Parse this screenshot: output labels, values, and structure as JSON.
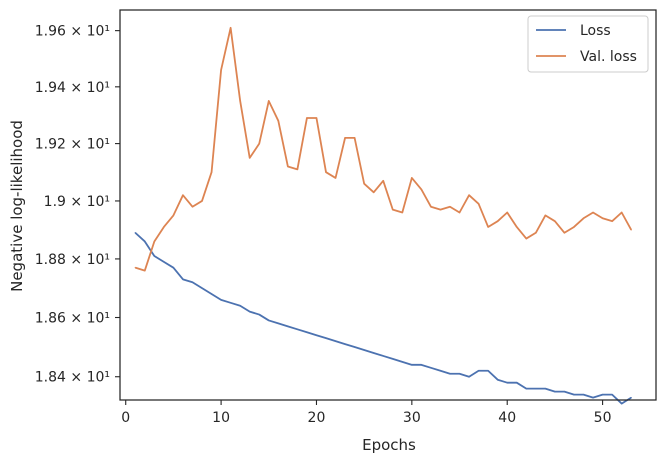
{
  "chart_data": {
    "type": "line",
    "title": "",
    "xlabel": "Epochs",
    "ylabel": "Negative log-likelihood",
    "xlim": [
      -0.6,
      55.6
    ],
    "ylim": [
      18.322,
      19.674
    ],
    "yscale": "log",
    "grid": false,
    "legend_position": "top-right",
    "x_ticks": [
      0,
      10,
      20,
      30,
      40,
      50
    ],
    "y_ticks": [
      {
        "value": 18.4,
        "label": "1.84 × 10¹"
      },
      {
        "value": 18.6,
        "label": "1.86 × 10¹"
      },
      {
        "value": 18.8,
        "label": "1.88 × 10¹"
      },
      {
        "value": 19.0,
        "label": "1.9 × 10¹"
      },
      {
        "value": 19.2,
        "label": "1.92 × 10¹"
      },
      {
        "value": 19.4,
        "label": "1.94 × 10¹"
      },
      {
        "value": 19.6,
        "label": "1.96 × 10¹"
      }
    ],
    "x": [
      1,
      2,
      3,
      4,
      5,
      6,
      7,
      8,
      9,
      10,
      11,
      12,
      13,
      14,
      15,
      16,
      17,
      18,
      19,
      20,
      21,
      22,
      23,
      24,
      25,
      26,
      27,
      28,
      29,
      30,
      31,
      32,
      33,
      34,
      35,
      36,
      37,
      38,
      39,
      40,
      41,
      42,
      43,
      44,
      45,
      46,
      47,
      48,
      49,
      50,
      51,
      52,
      53
    ],
    "series": [
      {
        "name": "Loss",
        "color": "#4c72b0",
        "values": [
          18.89,
          18.86,
          18.81,
          18.79,
          18.77,
          18.73,
          18.72,
          18.7,
          18.68,
          18.66,
          18.65,
          18.64,
          18.62,
          18.61,
          18.59,
          18.58,
          18.57,
          18.56,
          18.55,
          18.54,
          18.53,
          18.52,
          18.51,
          18.5,
          18.49,
          18.48,
          18.47,
          18.46,
          18.45,
          18.44,
          18.44,
          18.43,
          18.42,
          18.41,
          18.41,
          18.4,
          18.42,
          18.42,
          18.39,
          18.38,
          18.38,
          18.36,
          18.36,
          18.36,
          18.35,
          18.35,
          18.34,
          18.34,
          18.33,
          18.34,
          18.34,
          18.31,
          18.33
        ]
      },
      {
        "name": "Val. loss",
        "color": "#dd8452",
        "values": [
          18.77,
          18.76,
          18.86,
          18.91,
          18.95,
          19.02,
          18.98,
          19.0,
          19.1,
          19.46,
          19.61,
          19.35,
          19.15,
          19.2,
          19.35,
          19.28,
          19.12,
          19.11,
          19.29,
          19.29,
          19.1,
          19.08,
          19.22,
          19.22,
          19.06,
          19.03,
          19.07,
          18.97,
          18.96,
          19.08,
          19.04,
          18.98,
          18.97,
          18.98,
          18.96,
          19.02,
          18.99,
          18.91,
          18.93,
          18.96,
          18.91,
          18.87,
          18.89,
          18.95,
          18.93,
          18.89,
          18.91,
          18.94,
          18.96,
          18.94,
          18.93,
          18.96,
          18.9
        ]
      }
    ]
  }
}
